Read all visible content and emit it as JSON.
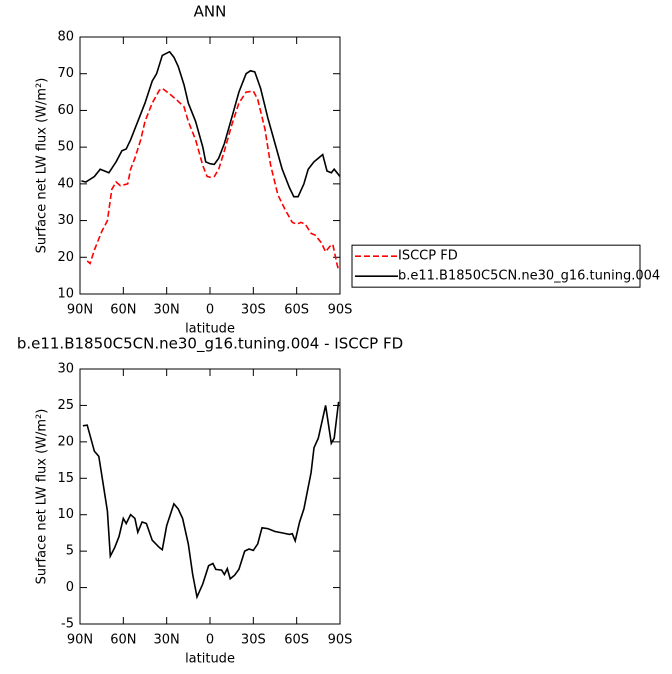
{
  "chart_data": [
    {
      "type": "line",
      "title": "ANN",
      "xlabel": "latitude",
      "ylabel": "Surface net LW flux (W/m²)",
      "xlim": [
        90,
        -90
      ],
      "ylim": [
        10,
        80
      ],
      "xticks": [
        {
          "value": 90,
          "label": "90N"
        },
        {
          "value": 60,
          "label": "60N"
        },
        {
          "value": 30,
          "label": "30N"
        },
        0,
        {
          "value": -30,
          "label": "30S"
        },
        {
          "value": -60,
          "label": "60S"
        },
        {
          "value": -90,
          "label": "90S"
        }
      ],
      "yticks": [
        10,
        20,
        30,
        40,
        50,
        60,
        70,
        80
      ],
      "legend": "right",
      "series": [
        {
          "name": "ISCCP FD",
          "color": "#ff0000",
          "style": "dashed",
          "x": [
            85,
            83,
            80,
            75,
            71,
            68,
            65,
            62,
            57,
            55,
            52,
            48,
            45,
            40,
            35,
            33,
            28,
            22,
            18,
            15,
            10,
            5,
            2,
            0,
            -3,
            -6,
            -10,
            -15,
            -20,
            -25,
            -30,
            -33,
            -38,
            -42,
            -47,
            -52,
            -57,
            -60,
            -63,
            -66,
            -70,
            -73,
            -77,
            -80,
            -83,
            -85,
            -88,
            -89
          ],
          "values": [
            19,
            18.3,
            22,
            27,
            30,
            38.5,
            40.5,
            39.5,
            40,
            44,
            47,
            52,
            57,
            62,
            65.5,
            66,
            64.5,
            62.5,
            61,
            57,
            52,
            45,
            42,
            41.8,
            42,
            44,
            49,
            56,
            62,
            65,
            65.3,
            63,
            55,
            45,
            37,
            33,
            29.5,
            29,
            29.5,
            29,
            26.5,
            26,
            24,
            21.5,
            23,
            23.5,
            18,
            16.5
          ]
        },
        {
          "name": "b.e11.B1850C5CN.ne30_g16.tuning.004",
          "color": "#000000",
          "style": "solid",
          "x": [
            89,
            86,
            80,
            76,
            70,
            65,
            61,
            58,
            55,
            50,
            45,
            40,
            37,
            33,
            28,
            25,
            22,
            18,
            15,
            10,
            5,
            3,
            0,
            -3,
            -6,
            -10,
            -15,
            -20,
            -25,
            -28,
            -31,
            -35,
            -40,
            -45,
            -50,
            -55,
            -58,
            -61,
            -65,
            -68,
            -72,
            -75,
            -78,
            -81,
            -84,
            -86,
            -90
          ],
          "values": [
            40.8,
            40.5,
            42,
            44,
            43,
            46,
            49,
            49.5,
            52,
            57,
            62,
            68,
            70,
            75,
            76,
            74.5,
            72,
            67,
            62,
            57,
            50,
            46,
            45.5,
            45.3,
            47,
            51,
            58,
            65,
            70,
            70.8,
            70.5,
            66,
            58,
            51,
            44,
            39,
            36.5,
            36.5,
            40,
            44,
            46,
            47,
            48,
            43.5,
            43,
            44,
            42
          ]
        }
      ]
    },
    {
      "type": "line",
      "title": "b.e11.B1850C5CN.ne30_g16.tuning.004 - ISCCP FD",
      "xlabel": "latitude",
      "ylabel": "Surface net LW flux (W/m²)",
      "xlim": [
        90,
        -90
      ],
      "ylim": [
        -5,
        30
      ],
      "xticks": [
        {
          "value": 90,
          "label": "90N"
        },
        {
          "value": 60,
          "label": "60N"
        },
        {
          "value": 30,
          "label": "30N"
        },
        0,
        {
          "value": -30,
          "label": "30S"
        },
        {
          "value": -60,
          "label": "60S"
        },
        {
          "value": -90,
          "label": "90S"
        }
      ],
      "yticks": [
        -5,
        0,
        5,
        10,
        15,
        20,
        25,
        30
      ],
      "series": [
        {
          "color": "#000000",
          "style": "solid",
          "x": [
            88,
            85,
            80,
            77,
            75,
            71,
            69,
            66,
            63,
            60,
            58,
            55,
            52,
            50,
            47,
            44,
            40,
            35,
            33,
            30,
            25,
            22,
            19,
            15,
            12,
            9,
            5,
            1,
            -2,
            -4,
            -8,
            -10,
            -12,
            -14,
            -17,
            -20,
            -24,
            -27,
            -30,
            -33,
            -36,
            -40,
            -45,
            -50,
            -55,
            -57,
            -59,
            -62,
            -65,
            -70,
            -72,
            -75,
            -80,
            -84,
            -86,
            -89
          ],
          "values": [
            22.2,
            22.3,
            18.7,
            18,
            15.5,
            10.5,
            4.3,
            5.5,
            7,
            9.5,
            8.8,
            10,
            9.5,
            7.6,
            9,
            8.8,
            6.5,
            5.5,
            5.2,
            8.5,
            11.5,
            10.8,
            9.5,
            6,
            1.8,
            -1.3,
            0.5,
            3,
            3.3,
            2.5,
            2.4,
            1.8,
            2.6,
            1.2,
            1.7,
            2.5,
            5,
            5.3,
            5.1,
            6,
            8.2,
            8.1,
            7.7,
            7.5,
            7.3,
            7.4,
            6.4,
            9,
            10.8,
            15.8,
            19.2,
            20.5,
            25,
            19.8,
            20.5,
            25.5
          ]
        }
      ]
    }
  ]
}
